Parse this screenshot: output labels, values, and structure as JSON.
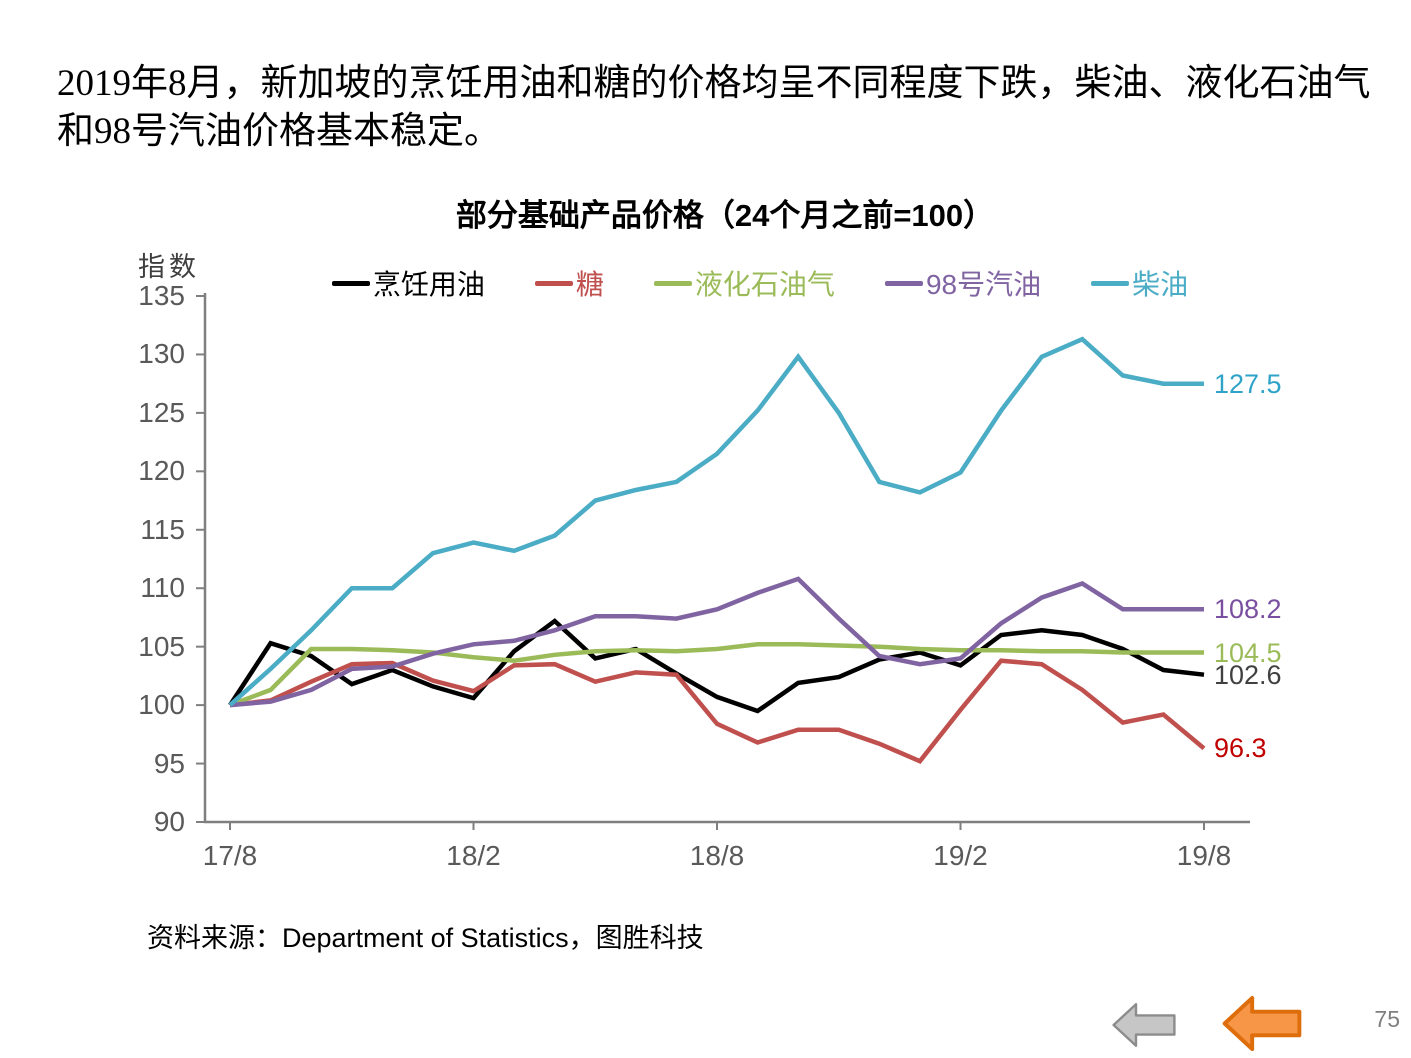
{
  "page": {
    "intro_text": "2019年8月，新加坡的烹饪用油和糖的价格均呈不同程度下跌，柴油、液化石油气和98号汽油价格基本稳定。",
    "source_label": "资料来源：Department of Statistics，图胜科技",
    "page_number": "75"
  },
  "nav": {
    "back_button_icon": "gray-left-block-arrow",
    "back_button_fill": "#C6C6C6",
    "back_button_border": "#8C8C8C",
    "previous_button_icon": "orange-left-block-arrow",
    "previous_button_fill": "#F79646",
    "previous_button_border": "#DE6D0C"
  },
  "chart_data": {
    "type": "line",
    "title": "部分基础产品价格（24个月之前=100）",
    "y_axis_title": "指数",
    "baseline_note": "24个月之前=100",
    "ylim": [
      90,
      135
    ],
    "yticks": [
      135,
      130,
      125,
      120,
      115,
      110,
      105,
      100,
      95,
      90
    ],
    "x_ticks": [
      {
        "label": "17/8",
        "month_index": 0
      },
      {
        "label": "18/2",
        "month_index": 6
      },
      {
        "label": "18/8",
        "month_index": 12
      },
      {
        "label": "19/2",
        "month_index": 18
      },
      {
        "label": "19/8",
        "month_index": 24
      }
    ],
    "n_points": 25,
    "grid": false,
    "legend_position": "top-center",
    "axis_color": "#7F7F7F",
    "series": [
      {
        "id": "cooking-oil",
        "name": "烹饪用油",
        "color": "#000000",
        "label_color": "#404040",
        "end_label": "102.6",
        "values": [
          100,
          105.3,
          104.2,
          101.8,
          103.0,
          101.6,
          100.6,
          104.6,
          107.2,
          104.0,
          104.8,
          102.7,
          100.7,
          99.5,
          101.9,
          102.4,
          103.9,
          104.5,
          103.4,
          106.0,
          106.4,
          106.0,
          104.8,
          103.0,
          102.6
        ]
      },
      {
        "id": "sugar",
        "name": "糖",
        "color": "#C0504D",
        "label_color": "#C00000",
        "end_label": "96.3",
        "values": [
          100,
          100.4,
          102.0,
          103.5,
          103.6,
          102.1,
          101.2,
          103.4,
          103.5,
          102.0,
          102.8,
          102.6,
          98.4,
          96.8,
          97.9,
          97.9,
          96.7,
          95.2,
          99.6,
          103.8,
          103.5,
          101.3,
          98.5,
          99.2,
          96.3
        ]
      },
      {
        "id": "lpg",
        "name": "液化石油气",
        "color": "#9BBB59",
        "label_color": "#9BBB59",
        "end_label": "104.5",
        "values": [
          100,
          101.3,
          104.8,
          104.8,
          104.7,
          104.5,
          104.1,
          103.8,
          104.3,
          104.6,
          104.7,
          104.6,
          104.8,
          105.2,
          105.2,
          105.1,
          105.0,
          104.8,
          104.7,
          104.7,
          104.6,
          104.6,
          104.5,
          104.5,
          104.5
        ]
      },
      {
        "id": "gasoline-98",
        "name": "98号汽油",
        "color": "#8064A2",
        "label_color": "#7A4FA0",
        "end_label": "108.2",
        "values": [
          100,
          100.3,
          101.3,
          103.1,
          103.3,
          104.4,
          105.2,
          105.5,
          106.4,
          107.6,
          107.6,
          107.4,
          108.2,
          109.6,
          110.8,
          107.4,
          104.2,
          103.5,
          104.0,
          107.0,
          109.2,
          110.4,
          108.2,
          108.2,
          108.2
        ]
      },
      {
        "id": "diesel",
        "name": "柴油",
        "color": "#4BACC6",
        "label_color": "#2FA3C7",
        "end_label": "127.5",
        "values": [
          100,
          103.1,
          106.4,
          110.0,
          110.0,
          113.0,
          113.9,
          113.2,
          114.5,
          117.5,
          118.4,
          119.1,
          121.5,
          125.2,
          129.8,
          125.0,
          119.1,
          118.2,
          119.9,
          125.2,
          129.8,
          131.3,
          128.2,
          127.5,
          127.5
        ]
      }
    ]
  }
}
